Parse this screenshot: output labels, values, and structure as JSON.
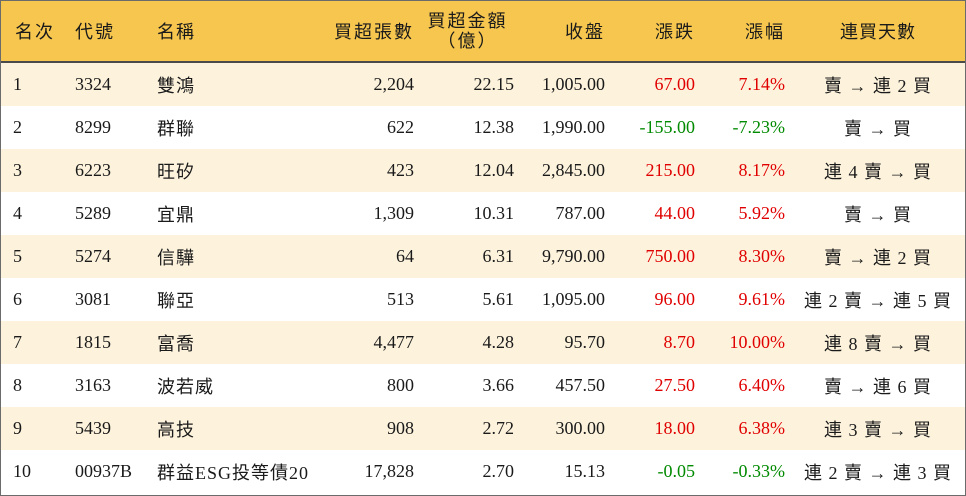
{
  "header": {
    "rank": "名次",
    "code": "代號",
    "name": "名稱",
    "net_buy_lots": "買超張數",
    "net_buy_amount_line1": "買超金額",
    "net_buy_amount_line2": "（億）",
    "close": "收盤",
    "change": "漲跌",
    "pct_change": "漲幅",
    "buy_streak": "連買天數"
  },
  "colors": {
    "header_bg": "#f6c64f",
    "odd_row_bg": "#fdf3dd",
    "up": "#e00000",
    "down": "#008a00"
  },
  "rows": [
    {
      "rank": "1",
      "code": "3324",
      "name": "雙鴻",
      "lots": "2,204",
      "amount": "22.15",
      "close": "1,005.00",
      "change": "67.00",
      "pct": "7.14%",
      "streak": "賣 → 連 2 買",
      "dir": "up"
    },
    {
      "rank": "2",
      "code": "8299",
      "name": "群聯",
      "lots": "622",
      "amount": "12.38",
      "close": "1,990.00",
      "change": "-155.00",
      "pct": "-7.23%",
      "streak": "賣 → 買",
      "dir": "down"
    },
    {
      "rank": "3",
      "code": "6223",
      "name": "旺矽",
      "lots": "423",
      "amount": "12.04",
      "close": "2,845.00",
      "change": "215.00",
      "pct": "8.17%",
      "streak": "連 4 賣 → 買",
      "dir": "up"
    },
    {
      "rank": "4",
      "code": "5289",
      "name": "宜鼎",
      "lots": "1,309",
      "amount": "10.31",
      "close": "787.00",
      "change": "44.00",
      "pct": "5.92%",
      "streak": "賣 → 買",
      "dir": "up"
    },
    {
      "rank": "5",
      "code": "5274",
      "name": "信驊",
      "lots": "64",
      "amount": "6.31",
      "close": "9,790.00",
      "change": "750.00",
      "pct": "8.30%",
      "streak": "賣 → 連 2 買",
      "dir": "up"
    },
    {
      "rank": "6",
      "code": "3081",
      "name": "聯亞",
      "lots": "513",
      "amount": "5.61",
      "close": "1,095.00",
      "change": "96.00",
      "pct": "9.61%",
      "streak": "連 2 賣 → 連 5 買",
      "dir": "up"
    },
    {
      "rank": "7",
      "code": "1815",
      "name": "富喬",
      "lots": "4,477",
      "amount": "4.28",
      "close": "95.70",
      "change": "8.70",
      "pct": "10.00%",
      "streak": "連 8 賣 → 買",
      "dir": "up"
    },
    {
      "rank": "8",
      "code": "3163",
      "name": "波若威",
      "lots": "800",
      "amount": "3.66",
      "close": "457.50",
      "change": "27.50",
      "pct": "6.40%",
      "streak": "賣 → 連 6 買",
      "dir": "up"
    },
    {
      "rank": "9",
      "code": "5439",
      "name": "高技",
      "lots": "908",
      "amount": "2.72",
      "close": "300.00",
      "change": "18.00",
      "pct": "6.38%",
      "streak": "連 3 賣 → 買",
      "dir": "up"
    },
    {
      "rank": "10",
      "code": "00937B",
      "name": "群益ESG投等債20",
      "lots": "17,828",
      "amount": "2.70",
      "close": "15.13",
      "change": "-0.05",
      "pct": "-0.33%",
      "streak": "連 2 賣 → 連 3 買",
      "dir": "down"
    }
  ]
}
